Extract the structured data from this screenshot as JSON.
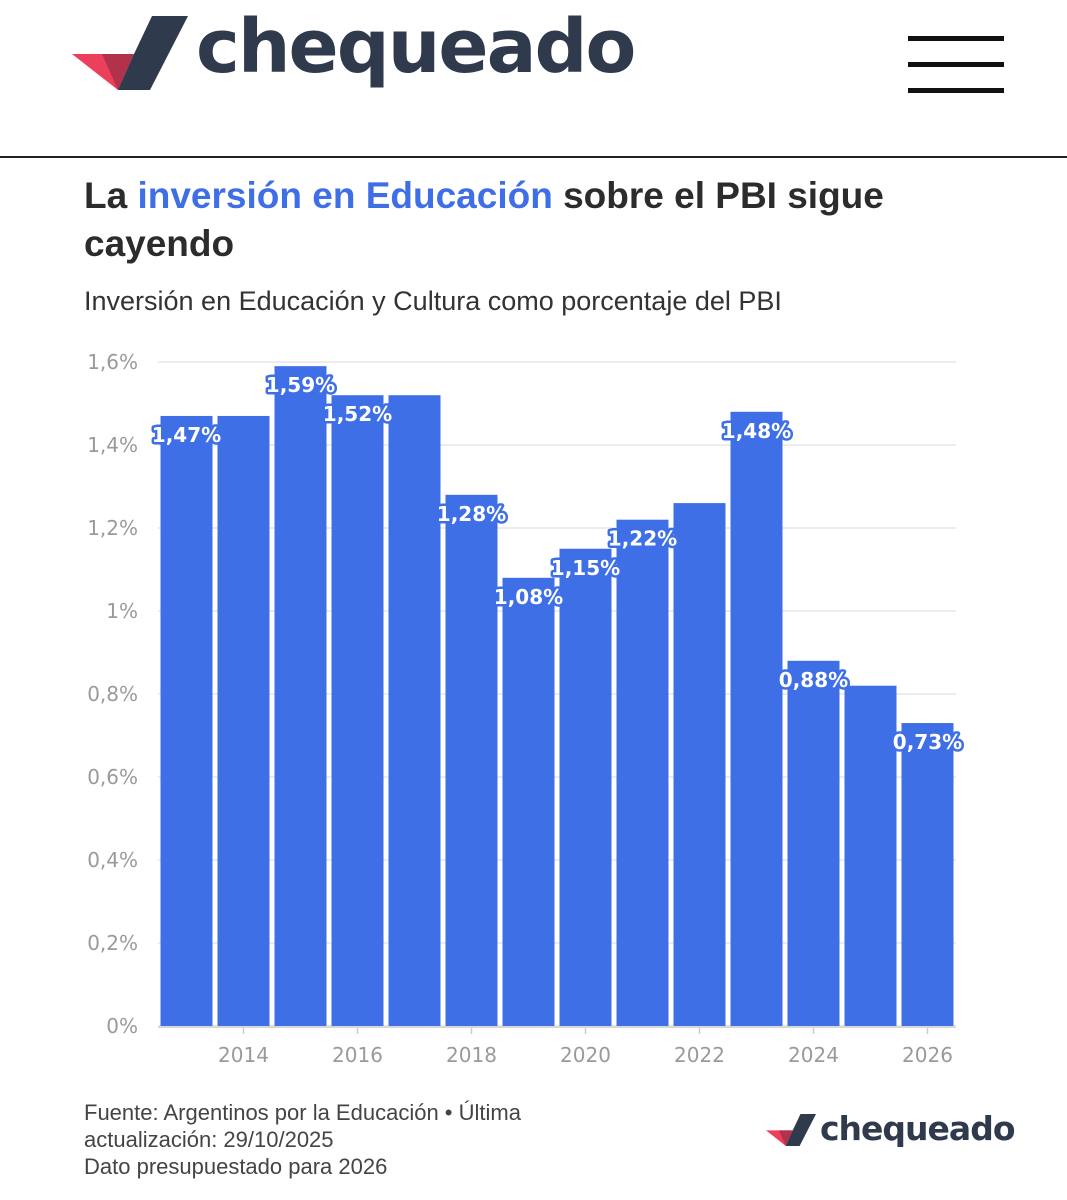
{
  "brand": {
    "name": "chequeado"
  },
  "header": {
    "menu_icon": "hamburger-icon"
  },
  "article": {
    "title_pre": "La ",
    "title_highlight": "inversión en Educación",
    "title_post": " sobre el PBI sigue cayendo",
    "subtitle": "Inversión en Educación y Cultura como porcentaje del PBI"
  },
  "colors": {
    "bar": "#3f6fe6",
    "highlight": "#3f6fe6",
    "brand_dark": "#2f3a4d",
    "brand_red": "#ec3f5c"
  },
  "chart_data": {
    "type": "bar",
    "years": [
      2013,
      2014,
      2015,
      2016,
      2017,
      2018,
      2019,
      2020,
      2021,
      2022,
      2023,
      2024,
      2025,
      2026
    ],
    "values": [
      1.47,
      1.47,
      1.59,
      1.52,
      1.52,
      1.28,
      1.08,
      1.15,
      1.22,
      1.26,
      1.48,
      0.88,
      0.82,
      0.73
    ],
    "data_labels": [
      "1,47%",
      null,
      "1,59%",
      "1,52%",
      null,
      "1,28%",
      "1,08%",
      "1,15%",
      "1,22%",
      null,
      "1,48%",
      "0,88%",
      null,
      "0,73%"
    ],
    "x_tick_labels": [
      "2014",
      "2016",
      "2018",
      "2020",
      "2022",
      "2024",
      "2026"
    ],
    "y_ticks": [
      0,
      0.2,
      0.4,
      0.6,
      0.8,
      1.0,
      1.2,
      1.4,
      1.6
    ],
    "y_tick_labels": [
      "0%",
      "0,2%",
      "0,4%",
      "0,6%",
      "0,8%",
      "1%",
      "1,2%",
      "1,4%",
      "1,6%"
    ],
    "ylim": [
      0,
      1.6
    ],
    "xlabel": "",
    "ylabel": "",
    "grid": true
  },
  "footer": {
    "line1": "Fuente: Argentinos por la Educación • Última",
    "line2": "actualización: 29/10/2025",
    "line3": "Dato presupuestado para 2026"
  }
}
